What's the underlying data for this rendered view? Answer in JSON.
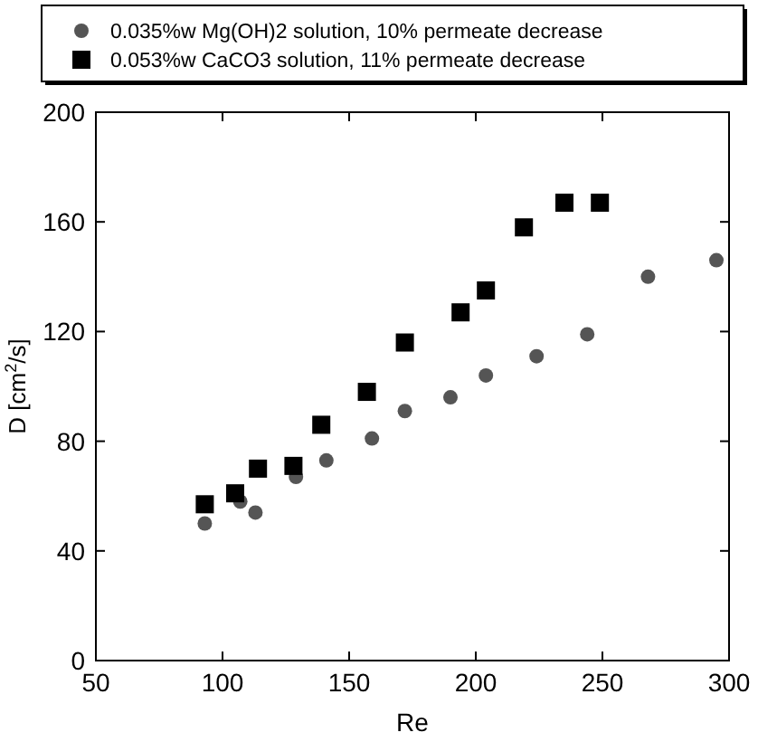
{
  "chart_data": {
    "type": "scatter",
    "xlabel": "Re",
    "ylabel": "D [cm$^{2}$/s]",
    "xlim": [
      50,
      300
    ],
    "xticks": [
      50,
      100,
      150,
      200,
      250,
      300
    ],
    "ylim": [
      0,
      200
    ],
    "yticks": [
      0,
      40,
      80,
      120,
      160,
      200
    ],
    "grid": false,
    "legend": "top",
    "series": [
      {
        "name": "0.035%w Mg(OH)2 solution, 10% permeate decrease",
        "color": "#555555",
        "marker": "circle",
        "x": [
          93,
          107,
          113,
          129,
          141,
          159,
          172,
          190,
          204,
          224,
          244,
          268,
          295
        ],
        "values": [
          50,
          58,
          54,
          67,
          73,
          81,
          91,
          96,
          104,
          111,
          119,
          140,
          146
        ]
      },
      {
        "name": "0.053%w CaCO3 solution, 11% permeate decrease",
        "color": "#000000",
        "marker": "square",
        "x": [
          93,
          105,
          114,
          128,
          139,
          157,
          172,
          194,
          204,
          219,
          235,
          249
        ],
        "values": [
          57,
          61,
          70,
          71,
          86,
          98,
          116,
          127,
          135,
          158,
          167,
          167
        ]
      }
    ]
  }
}
